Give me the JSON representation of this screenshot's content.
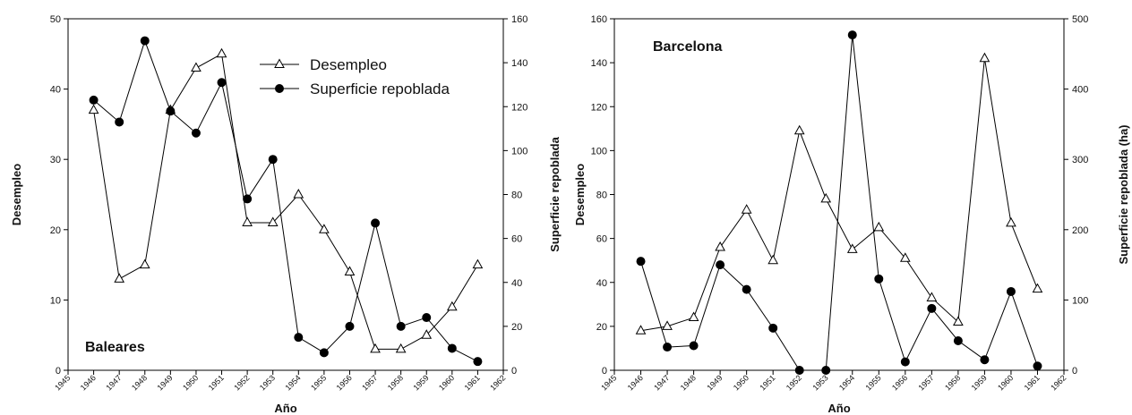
{
  "chart_data": [
    {
      "type": "line",
      "title": "Baleares",
      "xlabel": "Año",
      "ylabel": "Desempleo",
      "y2label": "Superficie repoblada",
      "xlim": [
        1945,
        1962
      ],
      "ylim": [
        0,
        50
      ],
      "y2lim": [
        0,
        160
      ],
      "x_ticks": [
        "1945",
        "1946",
        "1947",
        "1948",
        "1949",
        "1950",
        "1951",
        "1952",
        "1953",
        "1954",
        "1955",
        "1956",
        "1957",
        "1958",
        "1959",
        "1960",
        "1961",
        "1962"
      ],
      "y_ticks": [
        "0",
        "10",
        "20",
        "30",
        "40",
        "50"
      ],
      "y2_ticks": [
        "0",
        "20",
        "40",
        "60",
        "80",
        "100",
        "120",
        "140",
        "160"
      ],
      "legend_position": "top-right",
      "series": [
        {
          "name": "Desempleo",
          "axis": "left",
          "marker": "triangle-open",
          "x": [
            1946,
            1947,
            1948,
            1949,
            1950,
            1951,
            1952,
            1953,
            1954,
            1955,
            1956,
            1957,
            1958,
            1959,
            1960,
            1961
          ],
          "y": [
            37,
            13,
            15,
            37,
            43,
            45,
            21,
            21,
            25,
            20,
            14,
            3,
            3,
            5,
            9,
            15
          ]
        },
        {
          "name": "Superficie repoblada",
          "axis": "right",
          "marker": "circle-filled",
          "x": [
            1946,
            1947,
            1948,
            1949,
            1950,
            1951,
            1952,
            1953,
            1954,
            1955,
            1956,
            1957,
            1958,
            1959,
            1960,
            1961
          ],
          "y": [
            123,
            113,
            150,
            118,
            108,
            131,
            78,
            96,
            15,
            8,
            20,
            67,
            20,
            24,
            10,
            4
          ]
        }
      ]
    },
    {
      "type": "line",
      "title": "Barcelona",
      "xlabel": "Año",
      "ylabel": "Desempleo",
      "y2label": "Superficie repoblada (ha)",
      "xlim": [
        1945,
        1962
      ],
      "ylim": [
        0,
        160
      ],
      "y2lim": [
        0,
        500
      ],
      "x_ticks": [
        "1945",
        "1946",
        "1947",
        "1948",
        "1949",
        "1950",
        "1951",
        "1952",
        "1953",
        "1954",
        "1955",
        "1956",
        "1957",
        "1958",
        "1959",
        "1960",
        "1961",
        "1962"
      ],
      "y_ticks": [
        "0",
        "20",
        "40",
        "60",
        "80",
        "100",
        "120",
        "140",
        "160"
      ],
      "y2_ticks": [
        "0",
        "100",
        "200",
        "300",
        "400",
        "500"
      ],
      "legend_position": "none",
      "series": [
        {
          "name": "Desempleo",
          "axis": "left",
          "marker": "triangle-open",
          "x": [
            1946,
            1947,
            1948,
            1949,
            1950,
            1951,
            1952,
            1953,
            1954,
            1955,
            1956,
            1957,
            1958,
            1959,
            1960,
            1961
          ],
          "y": [
            18,
            20,
            24,
            56,
            73,
            50,
            109,
            78,
            55,
            65,
            51,
            33,
            22,
            142,
            67,
            37
          ]
        },
        {
          "name": "Superficie repoblada (ha)",
          "axis": "right",
          "marker": "circle-filled",
          "x": [
            1946,
            1947,
            1948,
            1949,
            1950,
            1951,
            1952,
            1953,
            1954,
            1955,
            1956,
            1957,
            1958,
            1959,
            1960,
            1961
          ],
          "y": [
            155,
            33,
            35,
            150,
            115,
            60,
            0,
            0,
            477,
            130,
            12,
            88,
            42,
            15,
            112,
            6
          ]
        }
      ]
    }
  ]
}
